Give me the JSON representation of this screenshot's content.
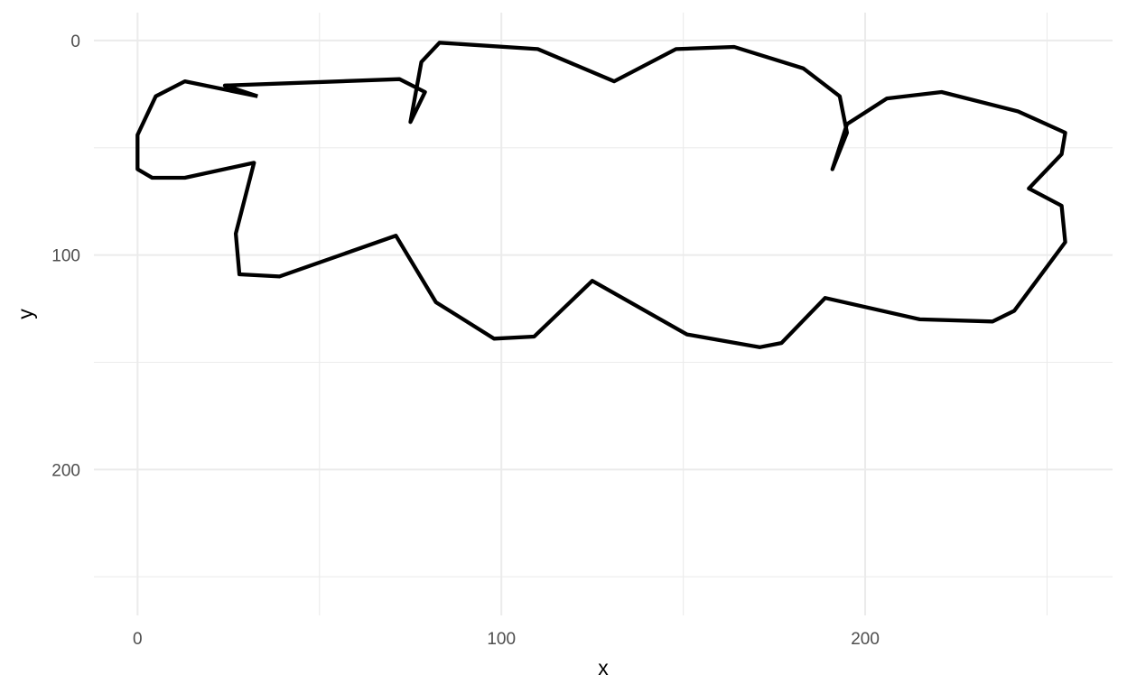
{
  "chart_data": {
    "type": "line",
    "title": "",
    "xlabel": "x",
    "ylabel": "y",
    "xlim": [
      -12,
      268
    ],
    "ylim": [
      -13,
      268
    ],
    "y_reversed": true,
    "x_ticks": [
      0,
      100,
      200
    ],
    "x_tick_labels": [
      "0",
      "100",
      "200"
    ],
    "x_minor_ticks": [
      50,
      150,
      250
    ],
    "y_ticks": [
      0,
      100,
      200
    ],
    "y_tick_labels": [
      "0",
      "100",
      "200"
    ],
    "y_minor_ticks": [
      50,
      150,
      250
    ],
    "grid": true,
    "legend": "none",
    "line_color": "#000000",
    "series": [
      {
        "x": [
          33,
          24,
          72,
          79,
          75,
          78,
          83,
          110,
          131,
          148,
          164,
          183,
          193,
          195,
          191,
          195,
          206,
          221,
          242,
          255,
          254,
          245,
          254,
          255,
          241,
          235,
          215,
          189,
          177,
          171,
          151,
          125,
          109,
          98,
          82,
          71,
          39,
          28,
          27,
          32,
          13,
          4,
          0,
          0,
          5,
          13,
          33
        ],
        "y": [
          26,
          21,
          18,
          24,
          38,
          10,
          1,
          4,
          19,
          4,
          3,
          13,
          26,
          43,
          60,
          39,
          27,
          24,
          33,
          43,
          53,
          69,
          77,
          94,
          126,
          131,
          130,
          120,
          141,
          143,
          137,
          112,
          138,
          139,
          122,
          91,
          110,
          109,
          90,
          57,
          64,
          64,
          60,
          44,
          26,
          19,
          26
        ]
      }
    ]
  }
}
